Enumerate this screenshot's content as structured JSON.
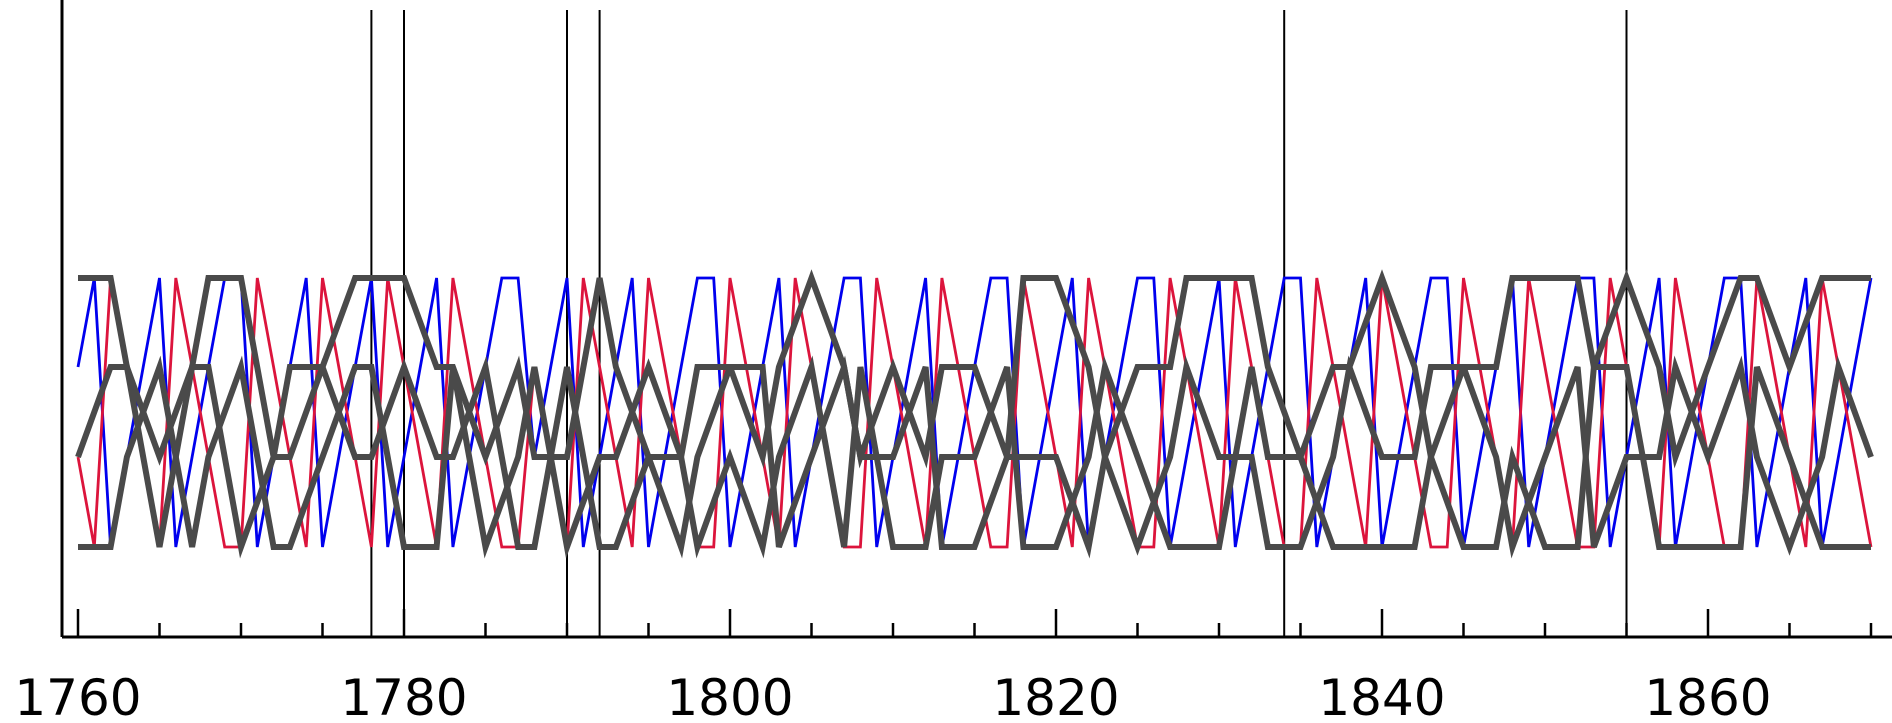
{
  "chart_data": {
    "type": "line",
    "title": "",
    "xlabel": "",
    "ylabel": "",
    "xlim": [
      1759,
      1870.5
    ],
    "ylim": [
      0.0,
      4.05
    ],
    "grid": false,
    "legend": "none",
    "x_ticks_major": [
      1760,
      1780,
      1800,
      1820,
      1840,
      1860
    ],
    "x_tick_labels": [
      "1760",
      "1780",
      "1800",
      "1820",
      "1840",
      "1860"
    ],
    "x_ticks_minor": [
      1765,
      1770,
      1775,
      1785,
      1790,
      1795,
      1805,
      1810,
      1815,
      1825,
      1830,
      1835,
      1845,
      1850,
      1855,
      1865,
      1870
    ],
    "event_lines": [
      1778,
      1780,
      1790,
      1792,
      1834,
      1855
    ],
    "levels": [
      1,
      2,
      3,
      4
    ],
    "colors": {
      "blue": "#0000ee",
      "red": "#dc143c",
      "gray": "#4a4a4a",
      "axis": "#000000"
    },
    "series": [
      {
        "color": "blue",
        "x": [
          1760,
          1761,
          1762,
          1763,
          1764,
          1765,
          1766,
          1767,
          1768,
          1769,
          1770,
          1771,
          1772,
          1773,
          1774,
          1775,
          1776,
          1777,
          1778,
          1779,
          1780,
          1781,
          1782,
          1783,
          1784,
          1785,
          1786,
          1787,
          1788,
          1789,
          1790,
          1791,
          1792,
          1793,
          1794,
          1795,
          1796,
          1797,
          1798,
          1799,
          1800,
          1801,
          1802,
          1803,
          1804,
          1805,
          1806,
          1807,
          1808,
          1809,
          1810,
          1811,
          1812,
          1813,
          1814,
          1815,
          1816,
          1817,
          1818,
          1819,
          1820,
          1821,
          1822,
          1823,
          1824,
          1825,
          1826,
          1827,
          1828,
          1829,
          1830,
          1831,
          1832,
          1833,
          1834,
          1835,
          1836,
          1837,
          1838,
          1839,
          1840,
          1841,
          1842,
          1843,
          1844,
          1845,
          1846,
          1847,
          1848,
          1849,
          1850,
          1851,
          1852,
          1853,
          1854,
          1855,
          1856,
          1857,
          1858,
          1859,
          1860,
          1861,
          1862,
          1863,
          1864,
          1865,
          1866,
          1867,
          1868,
          1869,
          1870
        ],
        "y": [
          3,
          4,
          1,
          2,
          3,
          4,
          1,
          2,
          3,
          4,
          4,
          1,
          2,
          3,
          4,
          1,
          2,
          3,
          4,
          1,
          2,
          3,
          4,
          1,
          2,
          3,
          4,
          4,
          2,
          3,
          4,
          1,
          2,
          3,
          4,
          1,
          2,
          3,
          4,
          4,
          1,
          2,
          3,
          4,
          1,
          2,
          3,
          4,
          4,
          1,
          2,
          3,
          4,
          1,
          2,
          3,
          4,
          4,
          1,
          2,
          3,
          4,
          1,
          2,
          3,
          4,
          4,
          1,
          2,
          3,
          4,
          1,
          2,
          3,
          4,
          4,
          1,
          2,
          3,
          4,
          1,
          2,
          3,
          4,
          4,
          1,
          2,
          3,
          4,
          1,
          2,
          3,
          4,
          4,
          1,
          2,
          3,
          4,
          1,
          2,
          3,
          4,
          4,
          1,
          2,
          3,
          4,
          1,
          2,
          3,
          4
        ]
      },
      {
        "color": "red",
        "x": [
          1760,
          1761,
          1762,
          1763,
          1764,
          1765,
          1766,
          1767,
          1768,
          1769,
          1770,
          1771,
          1772,
          1773,
          1774,
          1775,
          1776,
          1777,
          1778,
          1779,
          1780,
          1781,
          1782,
          1783,
          1784,
          1785,
          1786,
          1787,
          1788,
          1789,
          1790,
          1791,
          1792,
          1793,
          1794,
          1795,
          1796,
          1797,
          1798,
          1799,
          1800,
          1801,
          1802,
          1803,
          1804,
          1805,
          1806,
          1807,
          1808,
          1809,
          1810,
          1811,
          1812,
          1813,
          1814,
          1815,
          1816,
          1817,
          1818,
          1819,
          1820,
          1821,
          1822,
          1823,
          1824,
          1825,
          1826,
          1827,
          1828,
          1829,
          1830,
          1831,
          1832,
          1833,
          1834,
          1835,
          1836,
          1837,
          1838,
          1839,
          1840,
          1841,
          1842,
          1843,
          1844,
          1845,
          1846,
          1847,
          1848,
          1849,
          1850,
          1851,
          1852,
          1853,
          1854,
          1855,
          1856,
          1857,
          1858,
          1859,
          1860,
          1861,
          1862,
          1863,
          1864,
          1865,
          1866,
          1867,
          1868,
          1869,
          1870
        ],
        "y": [
          2,
          1,
          4,
          3,
          2,
          1,
          4,
          3,
          2,
          1,
          1,
          4,
          3,
          2,
          1,
          4,
          3,
          2,
          1,
          4,
          3,
          2,
          1,
          4,
          3,
          2,
          1,
          1,
          3,
          2,
          1,
          4,
          3,
          2,
          1,
          4,
          3,
          2,
          1,
          1,
          4,
          3,
          2,
          1,
          4,
          3,
          2,
          1,
          1,
          4,
          3,
          2,
          1,
          4,
          3,
          2,
          1,
          1,
          4,
          3,
          2,
          1,
          4,
          3,
          2,
          1,
          1,
          4,
          3,
          2,
          1,
          4,
          3,
          2,
          1,
          1,
          4,
          3,
          2,
          1,
          4,
          3,
          2,
          1,
          1,
          4,
          3,
          2,
          1,
          4,
          3,
          2,
          1,
          1,
          4,
          3,
          2,
          1,
          4,
          3,
          2,
          1,
          1,
          4,
          3,
          2,
          1,
          4,
          3,
          2,
          1
        ]
      },
      {
        "color": "gray",
        "x": [
          1760,
          1762,
          1763,
          1765,
          1767,
          1768,
          1770,
          1772,
          1773,
          1775,
          1777,
          1778,
          1780,
          1782,
          1783,
          1785,
          1787,
          1788,
          1790,
          1792,
          1793,
          1795,
          1797,
          1798,
          1800,
          1802,
          1803,
          1805,
          1807,
          1808,
          1810,
          1812,
          1813,
          1815,
          1817,
          1818,
          1820,
          1822,
          1823,
          1825,
          1827,
          1828,
          1830,
          1832,
          1833,
          1835,
          1837,
          1838,
          1840,
          1842,
          1843,
          1845,
          1847,
          1848,
          1850,
          1852,
          1853,
          1855,
          1857,
          1858,
          1860,
          1862,
          1863,
          1865,
          1867,
          1868,
          1870
        ],
        "y": [
          4,
          4,
          3,
          2,
          3,
          4,
          4,
          2,
          3,
          3,
          4,
          4,
          4,
          3,
          3,
          2,
          3,
          2,
          2,
          4,
          3,
          2,
          2,
          3,
          3,
          2,
          3,
          4,
          3,
          2,
          3,
          2,
          3,
          3,
          2,
          4,
          4,
          3,
          2,
          3,
          3,
          4,
          4,
          4,
          3,
          2,
          3,
          3,
          4,
          3,
          2,
          3,
          3,
          4,
          4,
          4,
          3,
          4,
          3,
          2,
          3,
          4,
          4,
          3,
          4,
          4,
          4
        ]
      },
      {
        "color": "gray",
        "x": [
          1760,
          1762,
          1763,
          1765,
          1767,
          1768,
          1770,
          1772,
          1773,
          1775,
          1777,
          1778,
          1780,
          1782,
          1783,
          1785,
          1787,
          1788,
          1790,
          1792,
          1793,
          1795,
          1797,
          1798,
          1800,
          1802,
          1803,
          1805,
          1807,
          1808,
          1810,
          1812,
          1813,
          1815,
          1817,
          1818,
          1820,
          1822,
          1823,
          1825,
          1827,
          1828,
          1830,
          1832,
          1833,
          1835,
          1837,
          1838,
          1840,
          1842,
          1843,
          1845,
          1847,
          1848,
          1850,
          1852,
          1853,
          1855,
          1857,
          1858,
          1860,
          1862,
          1863,
          1865,
          1867,
          1868,
          1870
        ],
        "y": [
          2,
          3,
          3,
          1,
          3,
          3,
          1,
          2,
          2,
          3,
          2,
          2,
          3,
          2,
          2,
          3,
          1,
          1,
          3,
          1,
          1,
          2,
          1,
          2,
          3,
          3,
          1,
          2,
          3,
          2,
          2,
          3,
          1,
          1,
          2,
          2,
          2,
          1,
          2,
          1,
          2,
          3,
          2,
          2,
          1,
          1,
          2,
          3,
          2,
          2,
          3,
          3,
          2,
          1,
          2,
          3,
          1,
          2,
          2,
          3,
          2,
          3,
          2,
          1,
          2,
          3,
          2
        ]
      },
      {
        "color": "gray",
        "x": [
          1760,
          1762,
          1763,
          1765,
          1767,
          1768,
          1770,
          1772,
          1773,
          1775,
          1777,
          1778,
          1780,
          1782,
          1783,
          1785,
          1787,
          1788,
          1790,
          1792,
          1793,
          1795,
          1797,
          1798,
          1800,
          1802,
          1803,
          1805,
          1807,
          1808,
          1810,
          1812,
          1813,
          1815,
          1817,
          1818,
          1820,
          1822,
          1823,
          1825,
          1827,
          1828,
          1830,
          1832,
          1833,
          1835,
          1837,
          1838,
          1840,
          1842,
          1843,
          1845,
          1847,
          1848,
          1850,
          1852,
          1853,
          1855,
          1857,
          1858,
          1860,
          1862,
          1863,
          1865,
          1867,
          1868,
          1870
        ],
        "y": [
          1,
          1,
          2,
          3,
          1,
          2,
          3,
          1,
          1,
          2,
          3,
          3,
          1,
          1,
          3,
          1,
          2,
          3,
          1,
          2,
          2,
          3,
          2,
          1,
          2,
          1,
          2,
          3,
          1,
          3,
          1,
          1,
          2,
          2,
          3,
          1,
          1,
          2,
          3,
          2,
          1,
          1,
          1,
          3,
          2,
          2,
          1,
          1,
          1,
          1,
          2,
          1,
          1,
          2,
          1,
          1,
          3,
          3,
          1,
          1,
          1,
          1,
          3,
          2,
          1,
          1,
          1
        ]
      }
    ]
  }
}
